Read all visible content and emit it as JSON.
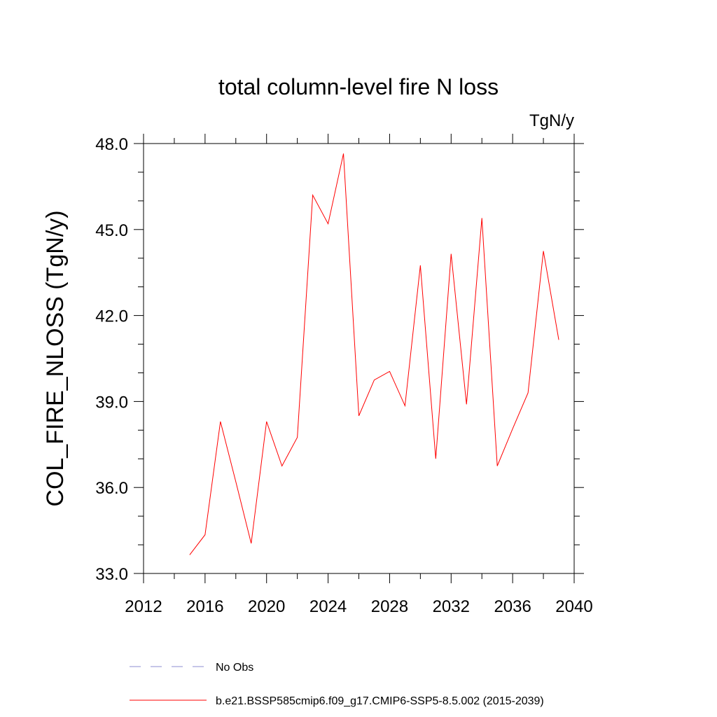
{
  "chart_data": {
    "type": "line",
    "title": "total column-level fire N loss",
    "units": "TgN/y",
    "ylabel": "COL_FIRE_NLOSS  (TgN/y)",
    "xlabel": "",
    "xlim": [
      2012,
      2040
    ],
    "ylim": [
      33.0,
      48.0
    ],
    "x_major_ticks": [
      2012,
      2016,
      2020,
      2024,
      2028,
      2032,
      2036,
      2040
    ],
    "x_tick_labels": [
      "2012",
      "2016",
      "2020",
      "2024",
      "2028",
      "2032",
      "2036",
      "2040"
    ],
    "y_major_ticks": [
      33.0,
      36.0,
      39.0,
      42.0,
      45.0,
      48.0
    ],
    "y_tick_labels": [
      "33.0",
      "36.0",
      "39.0",
      "42.0",
      "45.0",
      "48.0"
    ],
    "grid": false,
    "legend_placement": "bottom",
    "series": [
      {
        "name": "No Obs",
        "color": "#8c8cd2",
        "dashed": true,
        "x": [],
        "values": []
      },
      {
        "name": "b.e21.BSSP585cmip6.f09_g17.CMIP6-SSP5-8.5.002 (2015-2039)",
        "color": "#ff0000",
        "dashed": false,
        "x": [
          2015,
          2016,
          2017,
          2018,
          2019,
          2020,
          2021,
          2022,
          2023,
          2024,
          2025,
          2026,
          2027,
          2028,
          2029,
          2030,
          2031,
          2032,
          2033,
          2034,
          2035,
          2036,
          2037,
          2038,
          2039
        ],
        "values": [
          33.65,
          34.35,
          38.3,
          36.2,
          34.05,
          38.3,
          36.75,
          37.75,
          46.2,
          45.2,
          47.65,
          38.5,
          39.75,
          40.05,
          38.85,
          43.75,
          37.0,
          44.15,
          38.9,
          45.4,
          36.75,
          38.05,
          39.3,
          44.25,
          41.15
        ]
      }
    ]
  }
}
